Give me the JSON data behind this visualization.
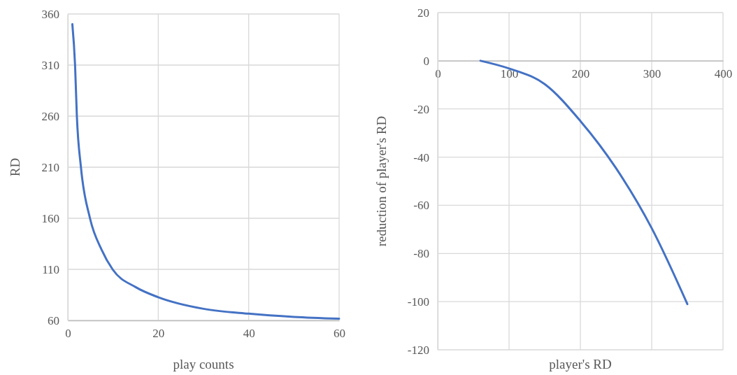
{
  "chart_data": [
    {
      "type": "line",
      "xlabel": "play counts",
      "ylabel": "RD",
      "xlim": [
        0,
        60
      ],
      "xticks": [
        0,
        20,
        40,
        60
      ],
      "ylim": [
        60,
        360
      ],
      "yticks": [
        60,
        110,
        160,
        210,
        260,
        310,
        360
      ],
      "grid": true,
      "marker": "none",
      "line_style": "solid",
      "series": [
        {
          "color": "#4472c4",
          "x": [
            1,
            1.6,
            2,
            2.9,
            4.9,
            7.5,
            9.9,
            15,
            20,
            30,
            40,
            50,
            60
          ],
          "values": [
            350,
            310,
            260,
            210,
            160,
            129,
            110,
            92.6,
            82.7,
            71.4,
            66.6,
            63.5,
            61.7
          ]
        }
      ]
    },
    {
      "type": "line",
      "xlabel": "player's RD",
      "ylabel": "reduction of player's RD",
      "xlim": [
        0,
        400
      ],
      "xticks": [
        0,
        100,
        200,
        300,
        400
      ],
      "ylim": [
        -120,
        20
      ],
      "yticks": [
        -120,
        -100,
        -80,
        -60,
        -40,
        -20,
        0,
        20
      ],
      "grid": true,
      "marker": "none",
      "line_style": "solid",
      "series": [
        {
          "color": "#4472c4",
          "x": [
            60,
            100,
            150,
            200,
            250,
            300,
            350
          ],
          "values": [
            0,
            -3.2,
            -9.7,
            -25,
            -44.6,
            -69.5,
            -101
          ]
        }
      ]
    }
  ]
}
